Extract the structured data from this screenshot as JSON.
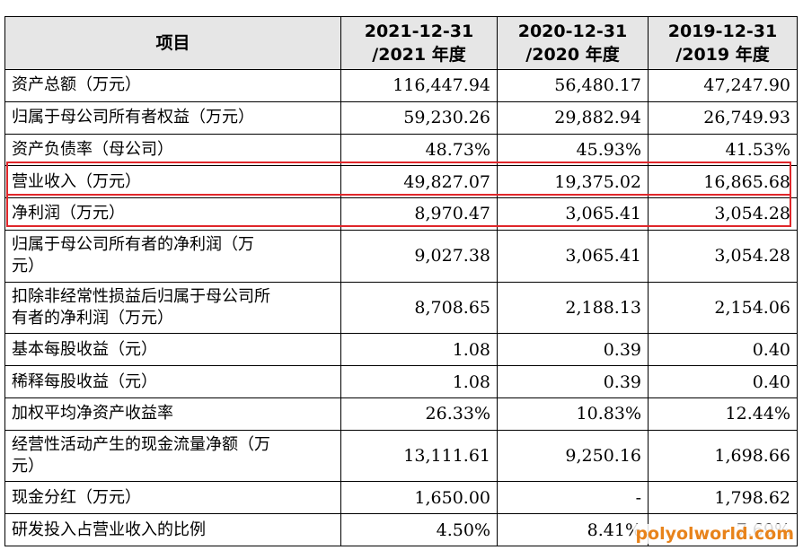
{
  "header": {
    "item": "项目",
    "col1": [
      "2021-12-31",
      "/2021 年度"
    ],
    "col2": [
      "2020-12-31",
      "/2020 年度"
    ],
    "col3": [
      "2019-12-31",
      "/2019 年度"
    ]
  },
  "rows": [
    {
      "label": [
        "资产总额（万元）"
      ],
      "v": [
        "116,447.94",
        "56,480.17",
        "47,247.90"
      ]
    },
    {
      "label": [
        "归属于母公司所有者权益（万元）"
      ],
      "v": [
        "59,230.26",
        "29,882.94",
        "26,749.93"
      ]
    },
    {
      "label": [
        "资产负债率（母公司）"
      ],
      "v": [
        "48.73%",
        "45.93%",
        "41.53%"
      ]
    },
    {
      "label": [
        "营业收入（万元）"
      ],
      "v": [
        "49,827.07",
        "19,375.02",
        "16,865.68"
      ]
    },
    {
      "label": [
        "净利润（万元）"
      ],
      "v": [
        "8,970.47",
        "3,065.41",
        "3,054.28"
      ]
    },
    {
      "label": [
        "归属于母公司所有者的净利润（万",
        "元）"
      ],
      "v": [
        "9,027.38",
        "3,065.41",
        "3,054.28"
      ]
    },
    {
      "label": [
        "扣除非经常性损益后归属于母公司所",
        "有者的净利润（万元）"
      ],
      "v": [
        "8,708.65",
        "2,188.13",
        "2,154.06"
      ]
    },
    {
      "label": [
        "基本每股收益（元）"
      ],
      "v": [
        "1.08",
        "0.39",
        "0.40"
      ]
    },
    {
      "label": [
        "稀释每股收益（元）"
      ],
      "v": [
        "1.08",
        "0.39",
        "0.40"
      ]
    },
    {
      "label": [
        "加权平均净资产收益率"
      ],
      "v": [
        "26.33%",
        "10.83%",
        "12.44%"
      ]
    },
    {
      "label": [
        "经营性活动产生的现金流量净额（万",
        "元）"
      ],
      "v": [
        "13,111.61",
        "9,250.16",
        "1,698.66"
      ]
    },
    {
      "label": [
        "现金分红（万元）"
      ],
      "v": [
        "1,650.00",
        "-",
        "1,798.62"
      ]
    },
    {
      "label": [
        "研发投入占营业收入的比例"
      ],
      "v": [
        "4.50%",
        "8.41%",
        "7.69%"
      ]
    }
  ],
  "highlight": {
    "color": "#e0262a"
  },
  "watermark": "polyolworld.com"
}
